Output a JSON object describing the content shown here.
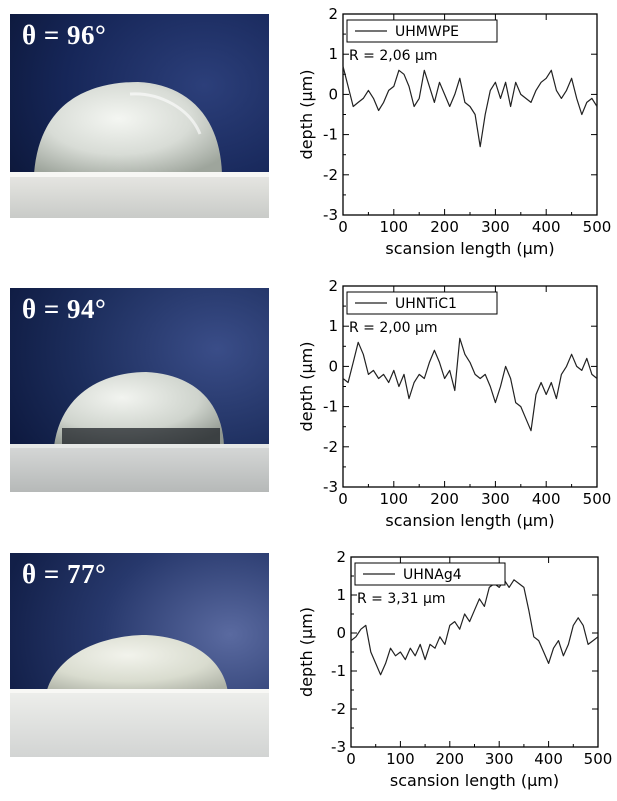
{
  "photos": [
    {
      "contact_angle_label": "θ = 96°"
    },
    {
      "contact_angle_label": "θ = 94°"
    },
    {
      "contact_angle_label": "θ = 77°"
    }
  ],
  "colors": {
    "line": "#222222",
    "axis": "#000000",
    "background_blue": "#1c2d5c"
  },
  "chart_data": [
    {
      "type": "line",
      "xlabel": "scansion length (μm)",
      "ylabel": "depth (μm)",
      "xlim": [
        0,
        500
      ],
      "ylim": [
        -3,
        2
      ],
      "xticks": [
        0,
        100,
        200,
        300,
        400,
        500
      ],
      "yticks": [
        -3,
        -2,
        -1,
        0,
        1,
        2
      ],
      "legend_position": "top-left",
      "annotation": "R = 2,06 μm",
      "series": [
        {
          "name": "UHMWPE",
          "x": [
            0,
            10,
            20,
            30,
            40,
            50,
            60,
            70,
            80,
            90,
            100,
            110,
            120,
            130,
            140,
            150,
            160,
            170,
            180,
            190,
            200,
            210,
            220,
            230,
            240,
            250,
            260,
            270,
            280,
            290,
            300,
            310,
            320,
            330,
            340,
            350,
            360,
            370,
            380,
            390,
            400,
            410,
            420,
            430,
            440,
            450,
            460,
            470,
            480,
            490,
            500
          ],
          "y": [
            0.7,
            0.2,
            -0.3,
            -0.2,
            -0.1,
            0.1,
            -0.1,
            -0.4,
            -0.2,
            0.1,
            0.2,
            0.6,
            0.5,
            0.2,
            -0.3,
            -0.1,
            0.6,
            0.2,
            -0.2,
            0.3,
            0.0,
            -0.3,
            0.0,
            0.4,
            -0.2,
            -0.3,
            -0.5,
            -1.3,
            -0.5,
            0.1,
            0.3,
            -0.1,
            0.3,
            -0.3,
            0.3,
            0.0,
            -0.1,
            -0.2,
            0.1,
            0.3,
            0.4,
            0.6,
            0.1,
            -0.1,
            0.1,
            0.4,
            -0.1,
            -0.5,
            -0.2,
            -0.1,
            -0.3
          ]
        }
      ]
    },
    {
      "type": "line",
      "xlabel": "scansion length (μm)",
      "ylabel": "depth (μm)",
      "xlim": [
        0,
        500
      ],
      "ylim": [
        -3,
        2
      ],
      "xticks": [
        0,
        100,
        200,
        300,
        400,
        500
      ],
      "yticks": [
        -3,
        -2,
        -1,
        0,
        1,
        2
      ],
      "legend_position": "top-left",
      "annotation": "R = 2,00 μm",
      "series": [
        {
          "name": "UHNTiC1",
          "x": [
            0,
            10,
            20,
            30,
            40,
            50,
            60,
            70,
            80,
            90,
            100,
            110,
            120,
            130,
            140,
            150,
            160,
            170,
            180,
            190,
            200,
            210,
            220,
            230,
            240,
            250,
            260,
            270,
            280,
            290,
            300,
            310,
            320,
            330,
            340,
            350,
            360,
            370,
            380,
            390,
            400,
            410,
            420,
            430,
            440,
            450,
            460,
            470,
            480,
            490,
            500
          ],
          "y": [
            -0.3,
            -0.4,
            0.1,
            0.6,
            0.3,
            -0.2,
            -0.1,
            -0.3,
            -0.2,
            -0.4,
            -0.1,
            -0.5,
            -0.2,
            -0.8,
            -0.4,
            -0.2,
            -0.3,
            0.1,
            0.4,
            0.1,
            -0.3,
            -0.1,
            -0.6,
            0.7,
            0.3,
            0.1,
            -0.2,
            -0.3,
            -0.2,
            -0.5,
            -0.9,
            -0.5,
            0.0,
            -0.3,
            -0.9,
            -1.0,
            -1.3,
            -1.6,
            -0.7,
            -0.4,
            -0.7,
            -0.4,
            -0.8,
            -0.2,
            0.0,
            0.3,
            0.0,
            -0.1,
            0.2,
            -0.2,
            -0.3
          ]
        }
      ]
    },
    {
      "type": "line",
      "xlabel": "scansion length (μm)",
      "ylabel": "depth (μm)",
      "xlim": [
        0,
        500
      ],
      "ylim": [
        -3,
        2
      ],
      "xticks": [
        0,
        100,
        200,
        300,
        400,
        500
      ],
      "yticks": [
        -3,
        -2,
        -1,
        0,
        1,
        2
      ],
      "legend_position": "top-left",
      "annotation": "R = 3,31 μm",
      "series": [
        {
          "name": "UHNAg4",
          "x": [
            0,
            10,
            20,
            30,
            40,
            50,
            60,
            70,
            80,
            90,
            100,
            110,
            120,
            130,
            140,
            150,
            160,
            170,
            180,
            190,
            200,
            210,
            220,
            230,
            240,
            250,
            260,
            270,
            280,
            290,
            300,
            310,
            320,
            330,
            340,
            350,
            360,
            370,
            380,
            390,
            400,
            410,
            420,
            430,
            440,
            450,
            460,
            470,
            480,
            490,
            500
          ],
          "y": [
            -0.2,
            -0.1,
            0.1,
            0.2,
            -0.5,
            -0.8,
            -1.1,
            -0.8,
            -0.4,
            -0.6,
            -0.5,
            -0.7,
            -0.4,
            -0.6,
            -0.3,
            -0.7,
            -0.3,
            -0.4,
            -0.1,
            -0.3,
            0.2,
            0.3,
            0.1,
            0.5,
            0.3,
            0.6,
            0.9,
            0.7,
            1.2,
            1.3,
            1.2,
            1.4,
            1.2,
            1.4,
            1.3,
            1.2,
            0.6,
            -0.1,
            -0.2,
            -0.5,
            -0.8,
            -0.4,
            -0.2,
            -0.6,
            -0.3,
            0.2,
            0.4,
            0.2,
            -0.3,
            -0.2,
            -0.1
          ]
        }
      ]
    }
  ]
}
